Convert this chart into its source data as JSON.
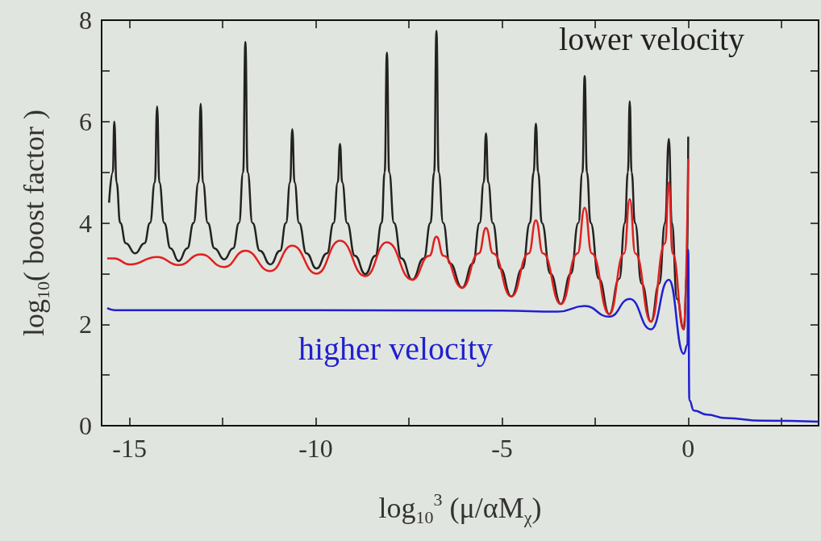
{
  "chart_data": {
    "type": "line",
    "xlabel": "log$_{10}$$^{3}$ (μ/αM$_{χ}$)",
    "ylabel": "log$_{10}$( boost factor )",
    "xlim": [
      -15.75,
      3.5
    ],
    "xticks": [
      -15,
      {
        "value": -12.5,
        "label": null
      },
      -10,
      {
        "value": -7.5,
        "label": null
      },
      -5,
      {
        "value": -2.5,
        "label": null
      },
      0,
      {
        "value": 2.5,
        "label": null
      }
    ],
    "ylim": [
      0,
      8
    ],
    "yticks": [
      0,
      {
        "value": 1,
        "label": null
      },
      2,
      {
        "value": 3,
        "label": null
      },
      4,
      {
        "value": 5,
        "label": null
      },
      6,
      {
        "value": 7,
        "label": null
      },
      8
    ],
    "grid": false,
    "legend": false,
    "marker": "none",
    "series": [
      {
        "name": "lower velocity",
        "color": "#222222",
        "x": [
          -15.55,
          -15.45,
          -15.41,
          -15.35,
          -15.25,
          -15.1,
          -14.85,
          -14.6,
          -14.45,
          -14.32,
          -14.26,
          -14.2,
          -14.07,
          -13.9,
          -13.68,
          -13.45,
          -13.28,
          -13.15,
          -13.09,
          -13.03,
          -12.9,
          -12.72,
          -12.46,
          -12.22,
          -12.06,
          -11.95,
          -11.89,
          -11.83,
          -11.7,
          -11.5,
          -11.22,
          -10.96,
          -10.8,
          -10.69,
          -10.63,
          -10.57,
          -10.45,
          -10.25,
          -9.98,
          -9.7,
          -9.52,
          -9.41,
          -9.35,
          -9.29,
          -9.16,
          -8.95,
          -8.67,
          -8.4,
          -8.23,
          -8.15,
          -8.09,
          -8.03,
          -7.9,
          -7.7,
          -7.41,
          -7.1,
          -6.92,
          -6.82,
          -6.76,
          -6.7,
          -6.58,
          -6.4,
          -6.07,
          -5.78,
          -5.6,
          -5.49,
          -5.43,
          -5.37,
          -5.25,
          -5.05,
          -4.75,
          -4.45,
          -4.25,
          -4.15,
          -4.09,
          -4.03,
          -3.93,
          -3.7,
          -3.42,
          -3.15,
          -2.95,
          -2.84,
          -2.78,
          -2.72,
          -2.62,
          -2.4,
          -2.12,
          -1.85,
          -1.7,
          -1.62,
          -1.57,
          -1.52,
          -1.43,
          -1.25,
          -1.0,
          -0.78,
          -0.62,
          -0.52,
          -0.44,
          -0.3,
          -0.12,
          -0.03,
          0
        ],
        "values": [
          4.4,
          5.0,
          6.0,
          4.8,
          4.0,
          3.6,
          3.4,
          3.6,
          4.0,
          4.8,
          6.3,
          4.8,
          4.0,
          3.5,
          3.25,
          3.5,
          4.0,
          4.8,
          6.35,
          4.8,
          4.0,
          3.5,
          3.28,
          3.5,
          4.0,
          5.0,
          7.57,
          5.0,
          4.0,
          3.45,
          3.18,
          3.45,
          4.0,
          4.8,
          5.85,
          4.8,
          4.0,
          3.4,
          3.1,
          3.4,
          4.0,
          4.8,
          5.56,
          4.8,
          4.0,
          3.35,
          2.99,
          3.35,
          4.0,
          5.0,
          7.36,
          5.0,
          4.0,
          3.3,
          2.88,
          3.3,
          4.0,
          5.0,
          7.79,
          5.0,
          4.0,
          3.2,
          2.72,
          3.2,
          4.0,
          4.8,
          5.77,
          4.8,
          4.0,
          3.1,
          2.55,
          3.1,
          4.0,
          5.0,
          5.96,
          5.0,
          4.0,
          3.0,
          2.4,
          3.0,
          4.0,
          5.0,
          6.9,
          5.0,
          4.0,
          2.9,
          2.2,
          2.9,
          4.0,
          5.0,
          6.4,
          5.0,
          4.0,
          2.8,
          2.05,
          2.8,
          4.0,
          5.66,
          4.0,
          2.5,
          1.9,
          3.0,
          5.7
        ]
      },
      {
        "color": "#e02020",
        "x": [
          -15.6,
          -15.41,
          -15.0,
          -14.26,
          -13.68,
          -13.09,
          -12.46,
          -11.89,
          -11.22,
          -10.63,
          -9.98,
          -9.35,
          -8.67,
          -8.09,
          -7.41,
          -6.95,
          -6.76,
          -6.57,
          -6.07,
          -5.62,
          -5.43,
          -5.24,
          -4.75,
          -4.28,
          -4.09,
          -3.9,
          -3.42,
          -2.97,
          -2.78,
          -2.59,
          -2.12,
          -1.72,
          -1.57,
          -1.42,
          -1.0,
          -0.62,
          -0.52,
          -0.42,
          -0.12,
          0
        ],
        "values": [
          3.3,
          3.3,
          3.18,
          3.33,
          3.17,
          3.38,
          3.13,
          3.45,
          3.05,
          3.55,
          3.0,
          3.65,
          2.95,
          3.62,
          2.88,
          3.35,
          3.73,
          3.35,
          2.72,
          3.4,
          3.9,
          3.4,
          2.55,
          3.4,
          4.05,
          3.4,
          2.4,
          3.4,
          4.3,
          3.4,
          2.2,
          3.4,
          4.47,
          3.4,
          2.05,
          3.6,
          4.8,
          3.4,
          1.9,
          5.27
        ]
      },
      {
        "name": "higher velocity",
        "color": "#2020d0",
        "x": [
          -15.6,
          -15.4,
          -10,
          -5,
          -3.5,
          -2.78,
          -2.12,
          -1.57,
          -1.0,
          -0.52,
          -0.12,
          -0.02,
          0,
          0.03,
          0.15,
          0.5,
          1.0,
          2.0,
          3.5
        ],
        "values": [
          2.32,
          2.28,
          2.28,
          2.27,
          2.25,
          2.36,
          2.15,
          2.5,
          1.9,
          2.88,
          1.42,
          1.6,
          3.47,
          0.5,
          0.3,
          0.22,
          0.15,
          0.1,
          0.08
        ]
      }
    ]
  }
}
